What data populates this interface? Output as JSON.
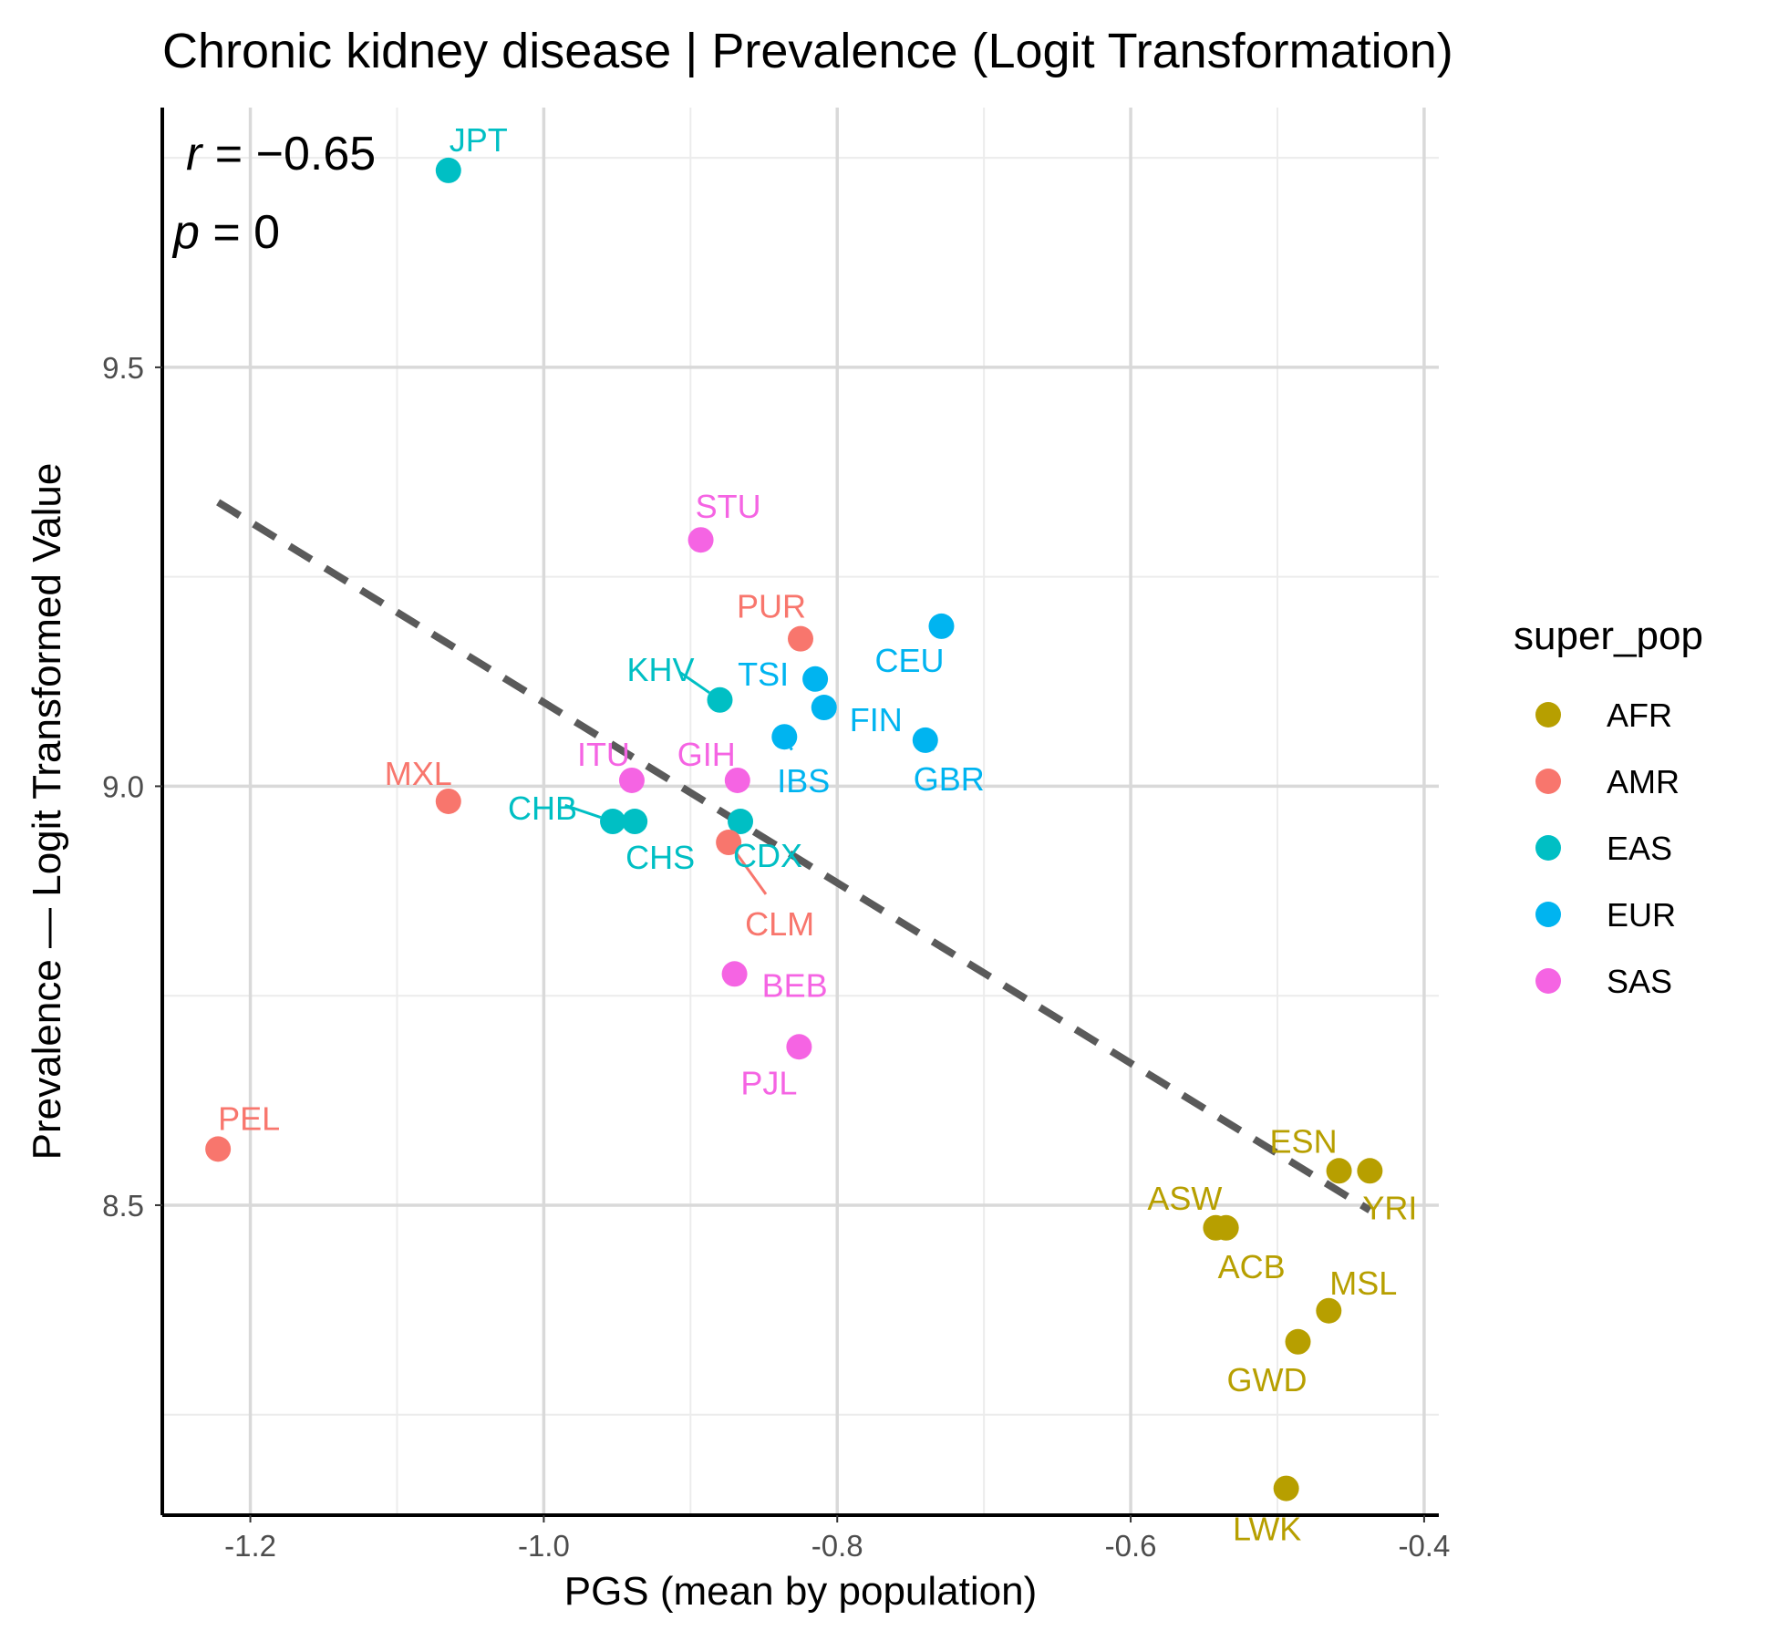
{
  "chart_data": {
    "type": "scatter",
    "title": "Chronic kidney disease | Prevalence (Logit Transformation)",
    "xlabel": "PGS (mean by population)",
    "ylabel": "Prevalence — Logit Transformed Value",
    "xlim": [
      -1.26,
      -0.39
    ],
    "ylim": [
      8.13,
      9.81
    ],
    "x_ticks": [
      -1.2,
      -1.0,
      -0.8,
      -0.6,
      -0.4
    ],
    "x_tick_labels": [
      "-1.2",
      "-1.0",
      "-0.8",
      "-0.6",
      "-0.4"
    ],
    "y_ticks": [
      8.5,
      9.0,
      9.5
    ],
    "y_tick_labels": [
      "8.5",
      "9.0",
      "9.5"
    ],
    "grid": true,
    "legend": {
      "title": "super_pop",
      "position": "right",
      "entries": [
        {
          "name": "AFR",
          "color": "#B79F00"
        },
        {
          "name": "AMR",
          "color": "#F8766D"
        },
        {
          "name": "EAS",
          "color": "#00BFC4"
        },
        {
          "name": "EUR",
          "color": "#00B4F0"
        },
        {
          "name": "SAS",
          "color": "#F564E3"
        }
      ]
    },
    "stats": {
      "r_symbol": "r",
      "r_value": " = −0.65",
      "p_symbol": "p",
      "p_value": " = 0"
    },
    "trend_line": {
      "x": [
        -1.222,
        -0.437
      ],
      "y": [
        9.339,
        8.494
      ]
    },
    "points": [
      {
        "label": "JPT",
        "group": "EAS",
        "x": -1.065,
        "y": 9.735
      },
      {
        "label": "STU",
        "group": "SAS",
        "x": -0.893,
        "y": 9.294
      },
      {
        "label": "PUR",
        "group": "AMR",
        "x": -0.825,
        "y": 9.176
      },
      {
        "label": "CEU",
        "group": "EUR",
        "x": -0.729,
        "y": 9.191
      },
      {
        "label": "KHV",
        "group": "EAS",
        "x": -0.88,
        "y": 9.103
      },
      {
        "label": "TSI",
        "group": "EUR",
        "x": -0.815,
        "y": 9.128
      },
      {
        "label": "FIN",
        "group": "EUR",
        "x": -0.809,
        "y": 9.094
      },
      {
        "label": "IBS",
        "group": "EUR",
        "x": -0.836,
        "y": 9.059
      },
      {
        "label": "GBR",
        "group": "EUR",
        "x": -0.74,
        "y": 9.055
      },
      {
        "label": "ITU",
        "group": "SAS",
        "x": -0.94,
        "y": 9.007
      },
      {
        "label": "GIH",
        "group": "SAS",
        "x": -0.868,
        "y": 9.007
      },
      {
        "label": "MXL",
        "group": "AMR",
        "x": -1.065,
        "y": 8.982
      },
      {
        "label": "CHB",
        "group": "EAS",
        "x": -0.953,
        "y": 8.958
      },
      {
        "label": "CHS",
        "group": "EAS",
        "x": -0.938,
        "y": 8.958
      },
      {
        "label": "CDX",
        "group": "EAS",
        "x": -0.866,
        "y": 8.958
      },
      {
        "label": "CLM",
        "group": "AMR",
        "x": -0.874,
        "y": 8.933
      },
      {
        "label": "BEB",
        "group": "SAS",
        "x": -0.87,
        "y": 8.776
      },
      {
        "label": "PJL",
        "group": "SAS",
        "x": -0.826,
        "y": 8.689
      },
      {
        "label": "PEL",
        "group": "AMR",
        "x": -1.222,
        "y": 8.567
      },
      {
        "label": "ESN",
        "group": "AFR",
        "x": -0.458,
        "y": 8.541
      },
      {
        "label": "YRI",
        "group": "AFR",
        "x": -0.437,
        "y": 8.541
      },
      {
        "label": "ASW",
        "group": "AFR",
        "x": -0.542,
        "y": 8.473
      },
      {
        "label": "ACB",
        "group": "AFR",
        "x": -0.535,
        "y": 8.473
      },
      {
        "label": "MSL",
        "group": "AFR",
        "x": -0.465,
        "y": 8.374
      },
      {
        "label": "GWD",
        "group": "AFR",
        "x": -0.486,
        "y": 8.337
      },
      {
        "label": "LWK",
        "group": "AFR",
        "x": -0.494,
        "y": 8.162
      }
    ]
  }
}
